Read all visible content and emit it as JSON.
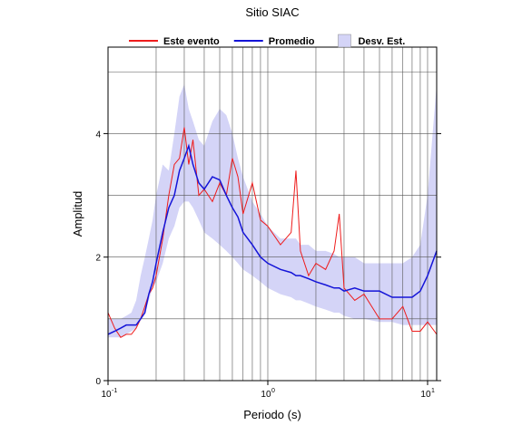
{
  "chart_data": {
    "type": "line",
    "title": "Sitio SIAC",
    "x_label": "Periodo (s)",
    "y_label": "Amplitud",
    "log_x": true,
    "xlim": [
      0.1,
      11.4
    ],
    "ylim": [
      0,
      5.4
    ],
    "xticks": [
      {
        "value": 0.1,
        "label": "10",
        "exponent": "-1"
      },
      {
        "value": 1,
        "label": "10",
        "exponent": "0"
      },
      {
        "value": 10,
        "label": "10",
        "exponent": "1"
      }
    ],
    "yticks": [
      0,
      2,
      4
    ],
    "xgrid": [
      0.2,
      0.3,
      0.4,
      0.5,
      0.6,
      0.7,
      0.8,
      0.9,
      1,
      2,
      3,
      4,
      5,
      6,
      7,
      8,
      9,
      10
    ],
    "ygrid": [
      1,
      2,
      3,
      4,
      5
    ],
    "x": [
      0.1,
      0.11,
      0.12,
      0.13,
      0.14,
      0.15,
      0.16,
      0.17,
      0.18,
      0.19,
      0.2,
      0.22,
      0.24,
      0.26,
      0.28,
      0.3,
      0.32,
      0.34,
      0.37,
      0.4,
      0.45,
      0.5,
      0.55,
      0.6,
      0.65,
      0.7,
      0.8,
      0.9,
      1.0,
      1.2,
      1.4,
      1.5,
      1.6,
      1.8,
      2.0,
      2.3,
      2.6,
      2.8,
      3.0,
      3.5,
      4,
      5,
      6,
      7,
      8,
      9,
      10,
      11.4
    ],
    "band": {
      "name": "Desv. Est.",
      "color": "#d4d4f7",
      "lower": [
        0.7,
        0.7,
        0.7,
        0.75,
        0.8,
        0.85,
        1.0,
        1.1,
        1.3,
        1.5,
        1.6,
        1.9,
        2.3,
        2.5,
        2.8,
        2.9,
        2.9,
        2.8,
        2.6,
        2.4,
        2.3,
        2.2,
        2.1,
        2.0,
        1.9,
        1.8,
        1.7,
        1.6,
        1.5,
        1.4,
        1.35,
        1.3,
        1.3,
        1.25,
        1.2,
        1.15,
        1.1,
        1.1,
        1.05,
        1.0,
        1.0,
        0.95,
        0.95,
        0.9,
        0.9,
        0.9,
        0.9,
        0.9
      ],
      "upper": [
        1.0,
        1.0,
        1.0,
        1.05,
        1.1,
        1.3,
        1.7,
        2.0,
        2.3,
        2.6,
        3.0,
        3.5,
        3.4,
        4.0,
        4.6,
        4.8,
        4.4,
        4.2,
        3.9,
        3.8,
        4.2,
        4.4,
        4.3,
        4.0,
        3.6,
        3.3,
        2.9,
        2.7,
        2.5,
        2.3,
        2.3,
        2.3,
        2.2,
        2.2,
        2.1,
        2.1,
        2.05,
        2.0,
        2.0,
        2.0,
        1.9,
        1.9,
        1.9,
        1.9,
        2.0,
        2.2,
        3.0,
        4.8
      ]
    },
    "series": [
      {
        "name": "Este evento",
        "color": "#ee1c1c",
        "values": [
          1.1,
          0.85,
          0.7,
          0.75,
          0.75,
          0.85,
          1.0,
          1.2,
          1.4,
          1.5,
          1.7,
          2.3,
          3.0,
          3.5,
          3.6,
          4.1,
          3.5,
          3.9,
          3.0,
          3.1,
          2.9,
          3.2,
          3.0,
          3.6,
          3.3,
          2.7,
          3.2,
          2.6,
          2.5,
          2.2,
          2.4,
          3.4,
          2.1,
          1.7,
          1.9,
          1.8,
          2.1,
          2.7,
          1.5,
          1.3,
          1.4,
          1.0,
          1.0,
          1.2,
          0.8,
          0.8,
          0.95,
          0.75
        ]
      },
      {
        "name": "Promedio",
        "color": "#1414d8",
        "values": [
          0.75,
          0.8,
          0.85,
          0.9,
          0.9,
          0.9,
          1.0,
          1.1,
          1.4,
          1.6,
          1.9,
          2.4,
          2.8,
          3.0,
          3.4,
          3.6,
          3.8,
          3.5,
          3.2,
          3.1,
          3.3,
          3.25,
          3.0,
          2.8,
          2.65,
          2.4,
          2.2,
          2.0,
          1.9,
          1.8,
          1.75,
          1.7,
          1.7,
          1.65,
          1.6,
          1.55,
          1.5,
          1.5,
          1.45,
          1.5,
          1.45,
          1.45,
          1.35,
          1.35,
          1.35,
          1.45,
          1.7,
          2.1
        ]
      }
    ]
  }
}
